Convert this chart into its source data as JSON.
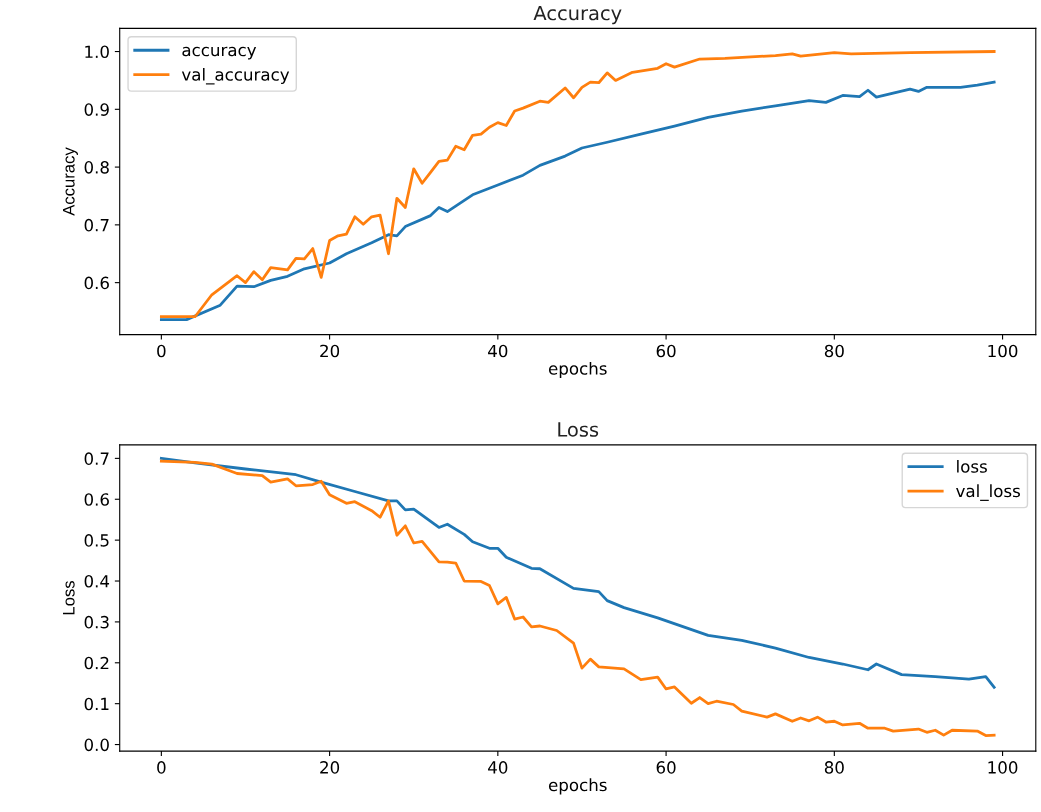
{
  "chart_data": [
    {
      "type": "line",
      "title": "Accuracy",
      "xlabel": "epochs",
      "ylabel": "Accuracy",
      "xlim": [
        -4.95,
        103.95
      ],
      "ylim": [
        0.51,
        1.04
      ],
      "xticks": [
        0,
        20,
        40,
        60,
        80,
        100
      ],
      "yticks": [
        {
          "value": 0.6,
          "label": "0.6"
        },
        {
          "value": 0.7,
          "label": "0.7"
        },
        {
          "value": 0.8,
          "label": "0.8"
        },
        {
          "value": 0.9,
          "label": "0.9"
        },
        {
          "value": 1.0,
          "label": "1.0"
        }
      ],
      "grid": false,
      "legend": "top left",
      "series": [
        {
          "name": "accuracy",
          "color": "#1f77b4",
          "x": [
            0,
            3,
            7,
            9,
            11,
            13,
            15,
            17,
            20,
            22,
            25,
            27,
            28,
            29,
            32,
            33,
            34,
            37,
            40,
            43,
            45,
            48,
            50,
            53,
            57,
            61,
            65,
            69,
            73,
            77,
            79,
            81,
            83,
            84,
            85,
            89,
            90,
            91,
            95,
            97,
            99
          ],
          "values": [
            0.536,
            0.536,
            0.561,
            0.594,
            0.593,
            0.604,
            0.611,
            0.624,
            0.634,
            0.65,
            0.669,
            0.683,
            0.681,
            0.697,
            0.716,
            0.73,
            0.723,
            0.752,
            0.769,
            0.786,
            0.803,
            0.819,
            0.833,
            0.843,
            0.857,
            0.871,
            0.886,
            0.897,
            0.906,
            0.915,
            0.912,
            0.924,
            0.922,
            0.933,
            0.921,
            0.935,
            0.931,
            0.938,
            0.938,
            0.942,
            0.947
          ]
        },
        {
          "name": "val_accuracy",
          "color": "#ff7f0e",
          "x": [
            0,
            4,
            6,
            9,
            10,
            11,
            12,
            13,
            15,
            16,
            17,
            18,
            19,
            20,
            21,
            22,
            23,
            24,
            25,
            26,
            27,
            28,
            29,
            30,
            31,
            32,
            33,
            34,
            35,
            36,
            37,
            38,
            39,
            40,
            41,
            42,
            43,
            45,
            46,
            48,
            49,
            50,
            51,
            52,
            53,
            54,
            56,
            59,
            60,
            61,
            64,
            67,
            73,
            75,
            76,
            80,
            82,
            89,
            99
          ],
          "values": [
            0.541,
            0.541,
            0.579,
            0.612,
            0.6,
            0.619,
            0.605,
            0.626,
            0.622,
            0.642,
            0.641,
            0.659,
            0.609,
            0.673,
            0.681,
            0.684,
            0.714,
            0.701,
            0.714,
            0.717,
            0.65,
            0.746,
            0.73,
            0.797,
            0.772,
            0.791,
            0.81,
            0.812,
            0.836,
            0.83,
            0.855,
            0.857,
            0.869,
            0.877,
            0.872,
            0.897,
            0.902,
            0.914,
            0.912,
            0.937,
            0.92,
            0.938,
            0.947,
            0.946,
            0.963,
            0.95,
            0.964,
            0.971,
            0.979,
            0.973,
            0.987,
            0.988,
            0.993,
            0.996,
            0.992,
            0.998,
            0.996,
            0.998,
            1.0
          ]
        }
      ]
    },
    {
      "type": "line",
      "title": "Loss",
      "xlabel": "epochs",
      "ylabel": "Loss",
      "xlim": [
        -4.95,
        103.95
      ],
      "ylim": [
        -0.016,
        0.733
      ],
      "xticks": [
        0,
        20,
        40,
        60,
        80,
        100
      ],
      "yticks": [
        {
          "value": 0.0,
          "label": "0.0"
        },
        {
          "value": 0.1,
          "label": "0.1"
        },
        {
          "value": 0.2,
          "label": "0.2"
        },
        {
          "value": 0.3,
          "label": "0.3"
        },
        {
          "value": 0.4,
          "label": "0.4"
        },
        {
          "value": 0.5,
          "label": "0.5"
        },
        {
          "value": 0.6,
          "label": "0.6"
        },
        {
          "value": 0.7,
          "label": "0.7"
        }
      ],
      "grid": false,
      "legend": "top right",
      "series": [
        {
          "name": "loss",
          "color": "#1f77b4",
          "x": [
            0,
            4,
            10,
            16,
            19,
            23,
            27,
            28,
            29,
            30,
            33,
            34,
            36,
            37,
            39,
            40,
            41,
            44,
            45,
            49,
            52,
            53,
            55,
            59,
            65,
            69,
            73,
            77,
            81,
            84,
            85,
            88,
            92,
            96,
            98,
            99
          ],
          "values": [
            0.7,
            0.689,
            0.674,
            0.66,
            0.642,
            0.619,
            0.596,
            0.596,
            0.574,
            0.576,
            0.531,
            0.539,
            0.514,
            0.496,
            0.48,
            0.48,
            0.458,
            0.431,
            0.43,
            0.382,
            0.374,
            0.352,
            0.335,
            0.31,
            0.267,
            0.255,
            0.236,
            0.213,
            0.197,
            0.183,
            0.197,
            0.171,
            0.166,
            0.16,
            0.166,
            0.14
          ]
        },
        {
          "name": "val_loss",
          "color": "#ff7f0e",
          "x": [
            0,
            4,
            6,
            9,
            12,
            13,
            15,
            16,
            18,
            19,
            20,
            22,
            23,
            25,
            26,
            27,
            28,
            29,
            30,
            31,
            33,
            34,
            35,
            36,
            38,
            39,
            40,
            41,
            42,
            43,
            44,
            45,
            47,
            49,
            50,
            51,
            52,
            55,
            57,
            59,
            60,
            61,
            63,
            64,
            65,
            66,
            68,
            69,
            72,
            73,
            75,
            76,
            77,
            78,
            79,
            80,
            81,
            83,
            84,
            86,
            87,
            90,
            91,
            92,
            93,
            94,
            97,
            98,
            99
          ],
          "values": [
            0.693,
            0.69,
            0.686,
            0.663,
            0.658,
            0.642,
            0.65,
            0.633,
            0.636,
            0.644,
            0.611,
            0.59,
            0.594,
            0.572,
            0.556,
            0.596,
            0.512,
            0.535,
            0.493,
            0.497,
            0.447,
            0.446,
            0.444,
            0.4,
            0.399,
            0.389,
            0.344,
            0.36,
            0.307,
            0.312,
            0.288,
            0.29,
            0.279,
            0.248,
            0.187,
            0.209,
            0.19,
            0.185,
            0.159,
            0.165,
            0.136,
            0.141,
            0.101,
            0.115,
            0.1,
            0.106,
            0.098,
            0.082,
            0.067,
            0.075,
            0.057,
            0.065,
            0.058,
            0.067,
            0.055,
            0.057,
            0.048,
            0.052,
            0.04,
            0.04,
            0.033,
            0.038,
            0.03,
            0.035,
            0.023,
            0.035,
            0.033,
            0.022,
            0.023
          ]
        }
      ]
    }
  ]
}
